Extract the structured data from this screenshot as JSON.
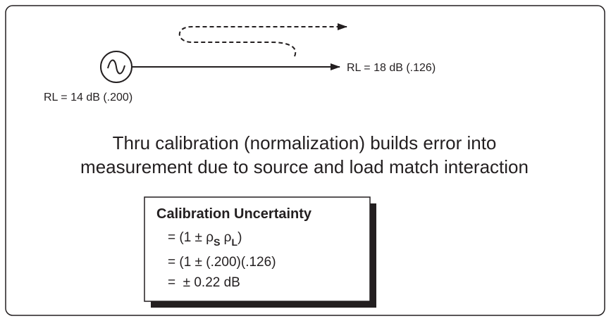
{
  "source_label": "RL = 14 dB (.200)",
  "load_label": "RL = 18 dB (.126)",
  "description": [
    "Thru calibration (normalization) builds error into",
    "measurement due to source and load match interaction"
  ],
  "box": {
    "title": "Calibration Uncertainty",
    "formula": [
      "= (1 ± ρ",
      "S",
      " ρ",
      "L",
      ")"
    ],
    "substitution": "= (1 ± (.200)(.126)",
    "result": "=  ± 0.22 dB"
  }
}
